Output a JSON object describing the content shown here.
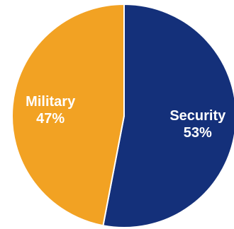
{
  "chart_data": {
    "type": "pie",
    "slices": [
      {
        "label": "Security",
        "value": 53,
        "value_label": "53%",
        "color": "#14307a"
      },
      {
        "label": "Military",
        "value": 47,
        "value_label": "47%",
        "color": "#f2a223"
      }
    ],
    "start": "top",
    "direction": "clockwise"
  }
}
